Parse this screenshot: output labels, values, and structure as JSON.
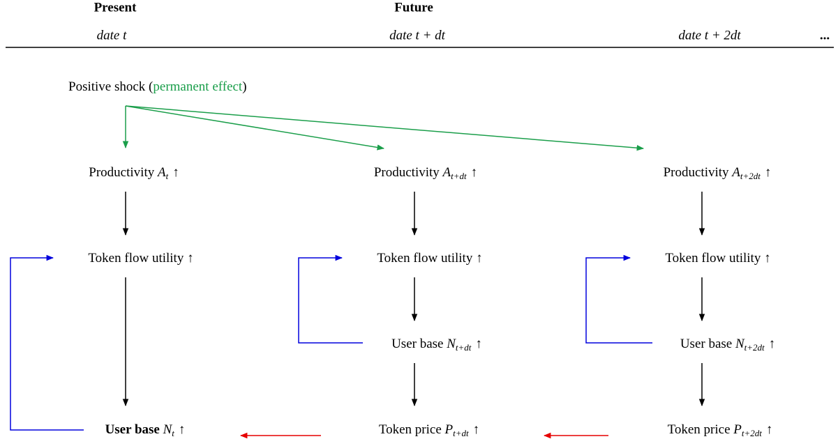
{
  "header": {
    "present": "Present",
    "future": "Future",
    "dates": [
      "date t",
      "date t + dt",
      "date t + 2dt"
    ],
    "ellipsis": "..."
  },
  "shock": {
    "prefix": "Positive shock (",
    "effect": "permanent effect",
    "suffix": ")"
  },
  "nodes": [
    {
      "label": "Productivity",
      "var": "A",
      "sub": "t",
      "arrow": "↑"
    },
    {
      "label": "Token flow utility",
      "arrow": "↑"
    },
    {
      "label": "User base",
      "var": "N",
      "sub": "t",
      "arrow": "↑"
    },
    {
      "label": "Productivity",
      "var": "A",
      "sub": "t+dt",
      "arrow": "↑"
    },
    {
      "label": "Token flow utility",
      "arrow": "↑"
    },
    {
      "label": "User base",
      "var": "N",
      "sub": "t+dt",
      "arrow": "↑"
    },
    {
      "label": "Token price",
      "var": "P",
      "sub": "t+dt",
      "arrow": "↑"
    },
    {
      "label": "Productivity",
      "var": "A",
      "sub": "t+2dt",
      "arrow": "↑"
    },
    {
      "label": "Token flow utility",
      "arrow": "↑"
    },
    {
      "label": "User base",
      "var": "N",
      "sub": "t+2dt",
      "arrow": "↑"
    },
    {
      "label": "Token price",
      "var": "P",
      "sub": "t+2dt",
      "arrow": "↑"
    }
  ]
}
